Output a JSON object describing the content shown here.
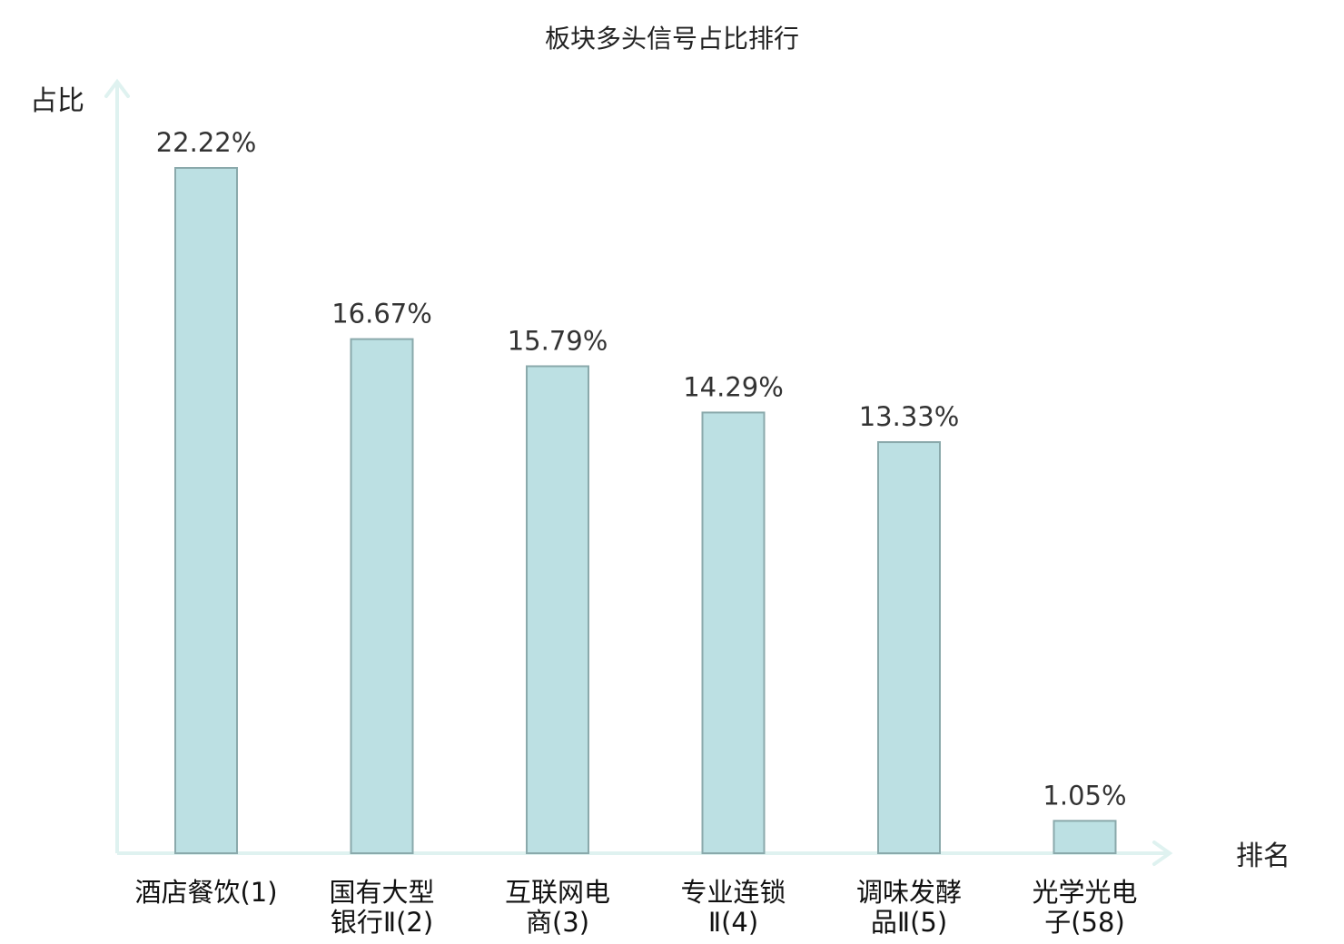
{
  "chart_data": {
    "type": "bar",
    "title": "板块多头信号占比排行",
    "ylabel": "占比",
    "xlabel": "排名",
    "ylim": [
      0,
      25
    ],
    "grid": false,
    "categories": [
      [
        "酒店餐饮(1)"
      ],
      [
        "国有大型",
        "银行Ⅱ(2)"
      ],
      [
        "互联网电",
        "商(3)"
      ],
      [
        "专业连锁",
        "Ⅱ(4)"
      ],
      [
        "调味发酵",
        "品Ⅱ(5)"
      ],
      [
        "光学光电",
        "子(58)"
      ]
    ],
    "values": [
      22.22,
      16.67,
      15.79,
      14.29,
      13.33,
      1.05
    ],
    "value_labels": [
      "22.22%",
      "16.67%",
      "15.79%",
      "14.29%",
      "13.33%",
      "1.05%"
    ],
    "highlight_index": 5
  },
  "colors": {
    "bar_fill": "#bce0e3",
    "bar_stroke": "#8aa9ab",
    "axis": "#dff2f0",
    "highlight_text": "#e8141c",
    "text": "#222222"
  }
}
